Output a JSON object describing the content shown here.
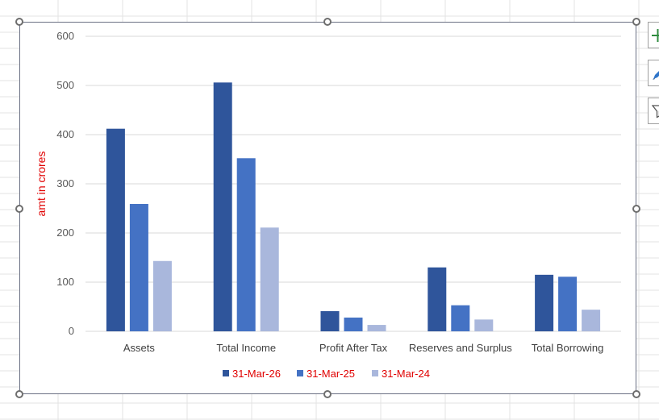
{
  "colors": {
    "series_2026": "#2f559b",
    "series_2025": "#4472c4",
    "series_2024": "#a9b7dc",
    "axis_label": "#e00000",
    "legend_text": "#e00000",
    "gridline": "#d9d9d9"
  },
  "side_buttons": [
    {
      "icon": "plus-icon"
    },
    {
      "icon": "brush-icon"
    },
    {
      "icon": "filter-icon"
    }
  ],
  "chart_data": {
    "type": "bar",
    "categories": [
      "Assets",
      "Total Income",
      "Profit After Tax",
      "Reserves and Surplus",
      "Total Borrowing"
    ],
    "series": [
      {
        "name": "31-Mar-26",
        "values": [
          412,
          506,
          41,
          130,
          115
        ]
      },
      {
        "name": "31-Mar-25",
        "values": [
          259,
          352,
          28,
          53,
          111
        ]
      },
      {
        "name": "31-Mar-24",
        "values": [
          143,
          211,
          13,
          24,
          44
        ]
      }
    ],
    "title": "",
    "xlabel": "",
    "ylabel": "amt in crores",
    "ylim": [
      0,
      600
    ],
    "yticks": [
      0,
      100,
      200,
      300,
      400,
      500,
      600
    ],
    "grid": true,
    "legend_position": "bottom"
  }
}
